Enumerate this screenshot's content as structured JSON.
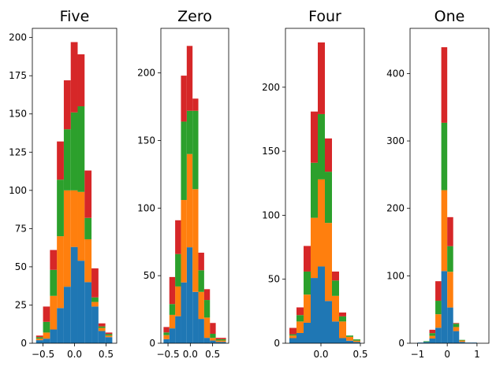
{
  "colors": [
    "#1f77b4",
    "#ff7f0e",
    "#2ca02c",
    "#d62728"
  ],
  "chart_data": [
    {
      "type": "bar",
      "stacked": true,
      "histogram": true,
      "title": "Five",
      "xlabel": "",
      "ylabel": "",
      "xlim": [
        -0.67,
        0.67
      ],
      "ylim": [
        0,
        206
      ],
      "xticks": [
        -0.5,
        0.0,
        0.5
      ],
      "xtick_labels": [
        "−0.5",
        "0.0",
        "0.5"
      ],
      "yticks": [
        0,
        25,
        50,
        75,
        100,
        125,
        150,
        175,
        200
      ],
      "bin_edges": [
        -0.61,
        -0.5,
        -0.39,
        -0.28,
        -0.17,
        -0.06,
        0.05,
        0.16,
        0.27,
        0.38,
        0.49,
        0.6
      ],
      "series": [
        {
          "values": [
            2,
            3,
            9,
            23,
            37,
            63,
            54,
            40,
            24,
            8,
            4
          ]
        },
        {
          "values": [
            1,
            4,
            22,
            47,
            63,
            37,
            45,
            28,
            3,
            2,
            1
          ]
        },
        {
          "values": [
            1,
            7,
            17,
            37,
            40,
            51,
            56,
            14,
            3,
            1,
            1
          ]
        },
        {
          "values": [
            1,
            10,
            13,
            25,
            32,
            46,
            34,
            31,
            19,
            2,
            1
          ]
        }
      ]
    },
    {
      "type": "bar",
      "stacked": true,
      "histogram": true,
      "title": "Zero",
      "xlabel": "",
      "ylabel": "",
      "xlim": [
        -0.66,
        0.86
      ],
      "ylim": [
        0,
        233
      ],
      "xticks": [
        -0.5,
        0.0,
        0.5
      ],
      "xtick_labels": [
        "−0.5",
        "0.0",
        "0.5"
      ],
      "yticks": [
        0,
        50,
        100,
        150,
        200
      ],
      "bin_edges": [
        -0.6,
        -0.47,
        -0.34,
        -0.21,
        -0.08,
        0.05,
        0.18,
        0.31,
        0.44,
        0.57,
        0.7,
        0.8
      ],
      "series": [
        {
          "values": [
            3,
            11,
            20,
            45,
            71,
            38,
            18,
            4,
            2,
            1,
            1
          ]
        },
        {
          "values": [
            3,
            10,
            22,
            61,
            69,
            76,
            20,
            15,
            2,
            1,
            1
          ]
        },
        {
          "values": [
            2,
            8,
            24,
            58,
            32,
            58,
            16,
            13,
            3,
            1,
            1
          ]
        },
        {
          "values": [
            4,
            20,
            25,
            34,
            48,
            9,
            13,
            8,
            8,
            1,
            1
          ]
        }
      ]
    },
    {
      "type": "bar",
      "stacked": true,
      "histogram": true,
      "title": "Four",
      "xlabel": "",
      "ylabel": "",
      "xlim": [
        -0.45,
        0.55
      ],
      "ylim": [
        0,
        246
      ],
      "xticks": [
        0.0,
        0.5
      ],
      "xtick_labels": [
        "0.0",
        "0.5"
      ],
      "yticks": [
        0,
        50,
        100,
        150,
        200
      ],
      "bin_edges": [
        -0.4,
        -0.31,
        -0.22,
        -0.13,
        -0.04,
        0.05,
        0.14,
        0.23,
        0.32,
        0.41,
        0.5
      ],
      "series": [
        {
          "values": [
            4,
            8,
            16,
            51,
            60,
            33,
            17,
            4,
            2,
            1
          ]
        },
        {
          "values": [
            2,
            9,
            22,
            47,
            68,
            61,
            20,
            13,
            3,
            1
          ]
        },
        {
          "values": [
            1,
            5,
            18,
            43,
            51,
            40,
            12,
            4,
            1,
            1
          ]
        },
        {
          "values": [
            5,
            6,
            20,
            40,
            56,
            26,
            7,
            3,
            0,
            0
          ]
        }
      ]
    },
    {
      "type": "bar",
      "stacked": true,
      "histogram": true,
      "title": "One",
      "xlabel": "",
      "ylabel": "",
      "xlim": [
        -1.25,
        1.4
      ],
      "ylim": [
        0,
        467
      ],
      "xticks": [
        -1,
        0,
        1
      ],
      "xtick_labels": [
        "−1",
        "0",
        "1"
      ],
      "yticks": [
        0,
        100,
        200,
        300,
        400
      ],
      "bin_edges": [
        -1.0,
        -0.8,
        -0.6,
        -0.4,
        -0.2,
        0.0,
        0.2,
        0.4,
        0.6,
        0.8,
        1.0
      ],
      "series": [
        {
          "values": [
            1,
            2,
            7,
            23,
            107,
            53,
            18,
            2,
            1,
            1
          ]
        },
        {
          "values": [
            0,
            0,
            4,
            20,
            120,
            53,
            6,
            2,
            0,
            0
          ]
        },
        {
          "values": [
            0,
            1,
            4,
            20,
            100,
            38,
            5,
            1,
            0,
            0
          ]
        },
        {
          "values": [
            0,
            0,
            5,
            29,
            112,
            43,
            1,
            0,
            0,
            0
          ]
        }
      ]
    }
  ]
}
